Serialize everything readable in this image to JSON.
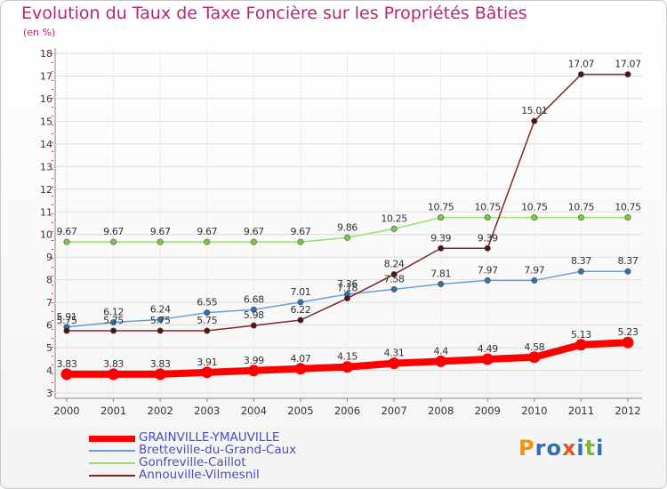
{
  "header": {
    "title": "Evolution du Taux de Taxe Foncière sur les Propriétés Bâties",
    "unit": "(en %)"
  },
  "logo": {
    "text": "Proxiti",
    "colors": [
      "#f39200",
      "#2f6fb7",
      "#2f6fb7",
      "#e8531f",
      "#2f6fb7",
      "#78b833",
      "#2f6fb7"
    ]
  },
  "chart_data": {
    "type": "line",
    "title": "Evolution du Taux de Taxe Foncière sur les Propriétés Bâties",
    "ylabel": "(en %)",
    "xlabel": "",
    "ylim": [
      3,
      18
    ],
    "yticks": [
      3,
      4,
      5,
      6,
      7,
      8,
      9,
      10,
      11,
      12,
      13,
      14,
      15,
      16,
      17,
      18
    ],
    "grid": true,
    "categories": [
      "2000",
      "2001",
      "2002",
      "2003",
      "2004",
      "2005",
      "2006",
      "2007",
      "2008",
      "2009",
      "2010",
      "2011",
      "2012"
    ],
    "series": [
      {
        "name": "GRAINVILLE-YMAUVILLE",
        "color": "#ff0000",
        "marker": "#ff0000",
        "width": 8,
        "values": [
          3.83,
          3.83,
          3.83,
          3.91,
          3.99,
          4.07,
          4.15,
          4.31,
          4.4,
          4.49,
          4.58,
          5.13,
          5.23
        ],
        "labels": [
          "3.83",
          "3.83",
          "3.83",
          "3.91",
          "3.99",
          "4.07",
          "4.15",
          "4.31",
          "4.4",
          "4.49",
          "4.58",
          "5.13",
          "5.23"
        ]
      },
      {
        "name": "Bretteville-du-Grand-Caux",
        "color": "#6a9fd4",
        "marker": "#2f6fb7",
        "width": 1.5,
        "values": [
          5.91,
          6.12,
          6.24,
          6.55,
          6.68,
          7.01,
          7.36,
          7.58,
          7.81,
          7.97,
          7.97,
          8.37,
          8.37
        ],
        "labels": [
          "5.91",
          "6.12",
          "6.24",
          "6.55",
          "6.68",
          "7.01",
          "7.36",
          "7.58",
          "7.81",
          "7.97",
          "7.97",
          "8.37",
          "8.37"
        ]
      },
      {
        "name": "Gonfreville-Caillot",
        "color": "#9bdc6e",
        "marker": "#7ac943",
        "width": 1.5,
        "values": [
          9.67,
          9.67,
          9.67,
          9.67,
          9.67,
          9.67,
          9.86,
          10.25,
          10.75,
          10.75,
          10.75,
          10.75,
          10.75
        ],
        "labels": [
          "9.67",
          "9.67",
          "9.67",
          "9.67",
          "9.67",
          "9.67",
          "9.86",
          "10.25",
          "10.75",
          "10.75",
          "10.75",
          "10.75",
          "10.75"
        ]
      },
      {
        "name": "Annouville-Vilmesnil",
        "color": "#7a2a2a",
        "marker": "#5a1010",
        "width": 1.5,
        "values": [
          5.75,
          5.75,
          5.75,
          5.75,
          5.98,
          6.22,
          7.18,
          8.24,
          9.39,
          9.39,
          15.01,
          17.07,
          17.07
        ],
        "labels": [
          "5.75",
          "5.75",
          "5.75",
          "5.75",
          "5.98",
          "6.22",
          "7.18",
          "8.24",
          "9.39",
          "9.39",
          "15.01",
          "17.07",
          "17.07"
        ]
      }
    ]
  }
}
